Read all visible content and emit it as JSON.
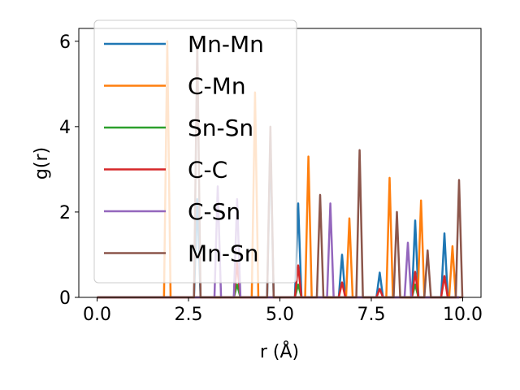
{
  "chart_data": {
    "type": "line",
    "title": "",
    "xlabel": "r (Å)",
    "ylabel": "g(r)",
    "xlim": [
      -0.5,
      10.5
    ],
    "ylim": [
      0,
      6.3
    ],
    "xticks": [
      0.0,
      2.5,
      5.0,
      7.5,
      10.0
    ],
    "xtick_labels": [
      "0.0",
      "2.5",
      "5.0",
      "7.5",
      "10.0"
    ],
    "yticks": [
      0,
      2,
      4,
      6
    ],
    "ytick_labels": [
      "0",
      "2",
      "4",
      "6"
    ],
    "grid": false,
    "legend_position": "upper-left",
    "peak_half_width": 0.09,
    "series": [
      {
        "name": "Mn-Mn",
        "color": "#1f77b4",
        "peaks": [
          [
            2.74,
            2.3
          ],
          [
            4.74,
            3.7
          ],
          [
            5.5,
            2.2
          ],
          [
            6.7,
            1.0
          ],
          [
            7.73,
            0.58
          ],
          [
            8.7,
            1.8
          ],
          [
            9.5,
            1.5
          ]
        ]
      },
      {
        "name": "C-Mn",
        "color": "#ff7f0e",
        "peaks": [
          [
            1.92,
            6.0
          ],
          [
            4.32,
            4.8
          ],
          [
            5.78,
            3.3
          ],
          [
            6.9,
            1.85
          ],
          [
            8.0,
            2.8
          ],
          [
            8.86,
            2.27
          ],
          [
            9.72,
            1.2
          ]
        ]
      },
      {
        "name": "Sn-Sn",
        "color": "#2ca02c",
        "peaks": [
          [
            3.83,
            0.3
          ],
          [
            5.5,
            0.3
          ],
          [
            8.7,
            0.3
          ]
        ]
      },
      {
        "name": "C-C",
        "color": "#d62728",
        "peaks": [
          [
            3.83,
            0.8
          ],
          [
            5.5,
            0.75
          ],
          [
            6.7,
            0.35
          ],
          [
            7.73,
            0.2
          ],
          [
            8.7,
            0.6
          ],
          [
            9.5,
            0.5
          ]
        ]
      },
      {
        "name": "C-Sn",
        "color": "#9467bd",
        "peaks": [
          [
            3.3,
            2.6
          ],
          [
            3.83,
            2.3
          ],
          [
            6.38,
            2.2
          ],
          [
            8.5,
            1.28
          ]
        ]
      },
      {
        "name": "Mn-Sn",
        "color": "#8c564b",
        "peaks": [
          [
            2.74,
            6.0
          ],
          [
            4.74,
            4.0
          ],
          [
            6.1,
            2.4
          ],
          [
            7.18,
            3.45
          ],
          [
            8.2,
            2.0
          ],
          [
            9.04,
            1.1
          ],
          [
            9.9,
            2.75
          ]
        ]
      }
    ]
  }
}
